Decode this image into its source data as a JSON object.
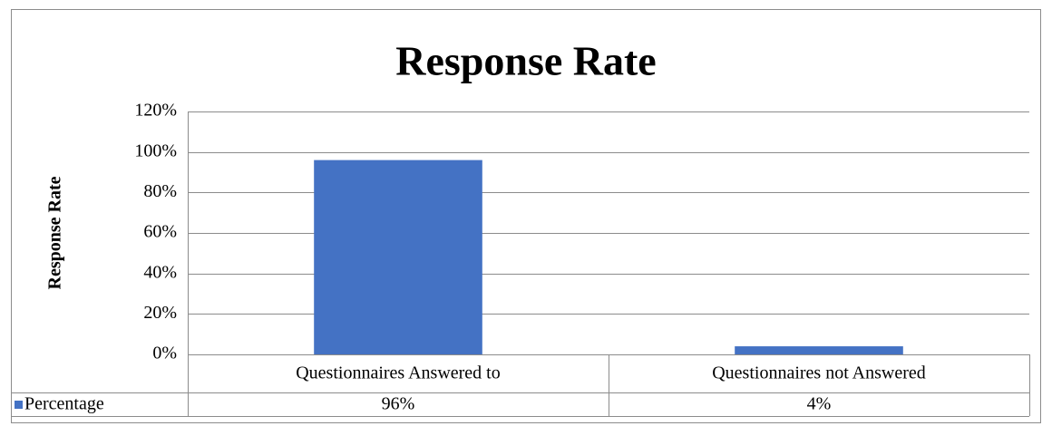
{
  "chart_data": {
    "type": "bar",
    "title": "Response Rate",
    "y_label": "Response Rate",
    "categories": [
      "Questionnaires Answered to",
      "Questionnaires not Answered"
    ],
    "series": [
      {
        "name": "Percentage",
        "color": "#4472c4",
        "values": [
          96,
          4
        ],
        "value_labels": [
          "96%",
          "4%"
        ]
      }
    ],
    "ylim": [
      0,
      120
    ],
    "yticks": [
      {
        "value": 0,
        "label": "0%"
      },
      {
        "value": 20,
        "label": "20%"
      },
      {
        "value": 40,
        "label": "40%"
      },
      {
        "value": 60,
        "label": "60%"
      },
      {
        "value": 80,
        "label": "80%"
      },
      {
        "value": 100,
        "label": "100%"
      },
      {
        "value": 120,
        "label": "120%"
      }
    ],
    "grid": true,
    "data_table": true
  }
}
